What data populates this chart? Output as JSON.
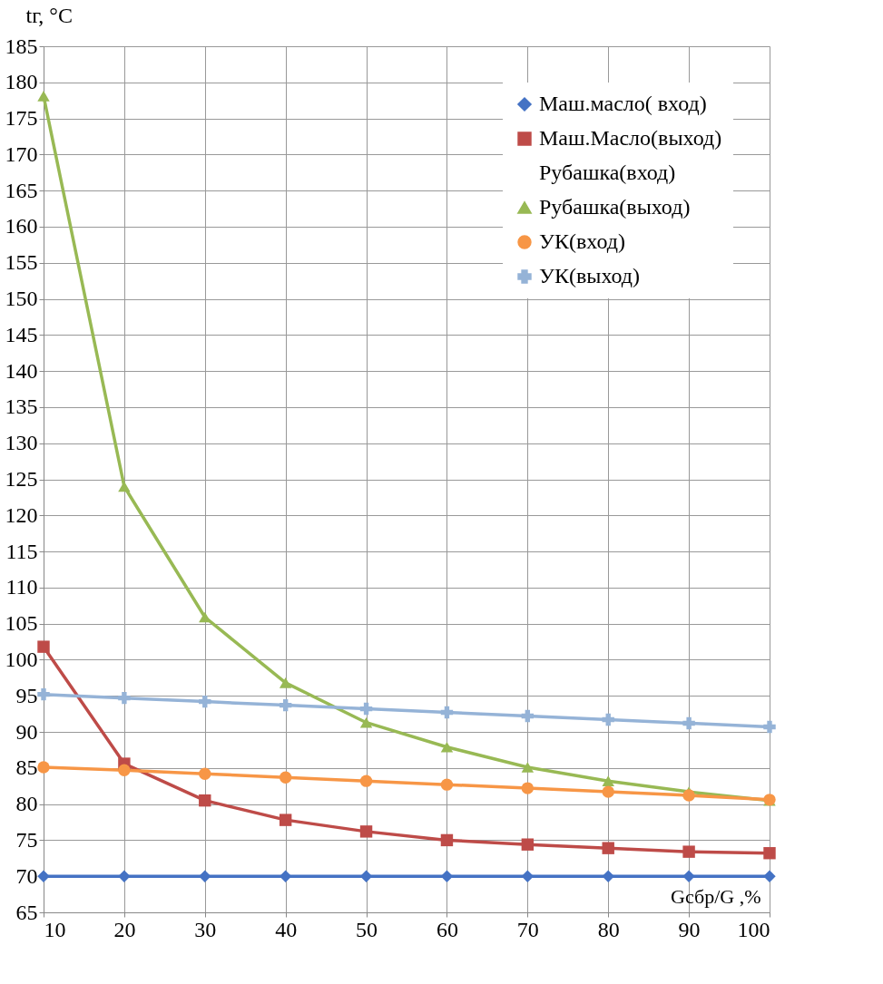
{
  "chart_data": {
    "type": "line",
    "xlabel": "Gсбр/G ,%",
    "ylabel": "tг, °C",
    "x": [
      10,
      20,
      30,
      40,
      50,
      60,
      70,
      80,
      90,
      100
    ],
    "series": [
      {
        "name": "Маш.масло( вход)",
        "color": "#4472c4",
        "marker": "diamond",
        "values": [
          70,
          70,
          70,
          70,
          70,
          70,
          70,
          70,
          70,
          70
        ]
      },
      {
        "name": "Маш.Масло(выход)",
        "color": "#be4b48",
        "marker": "square",
        "values": [
          101.8,
          85.6,
          80.5,
          77.8,
          76.2,
          75.0,
          74.4,
          73.9,
          73.4,
          73.2
        ]
      },
      {
        "name": "Рубашка(вход)",
        "marker": "none",
        "values": [
          null,
          null,
          null,
          null,
          null,
          null,
          null,
          null,
          null,
          null
        ]
      },
      {
        "name": "Рубашка(выход)",
        "color": "#98b954",
        "marker": "triangle",
        "values": [
          178.1,
          124.0,
          105.9,
          96.8,
          91.3,
          87.9,
          85.1,
          83.2,
          81.7,
          80.5
        ]
      },
      {
        "name": "УК(вход)",
        "color": "#f79646",
        "marker": "circle",
        "values": [
          85.1,
          84.7,
          84.2,
          83.7,
          83.2,
          82.7,
          82.2,
          81.7,
          81.2,
          80.6
        ]
      },
      {
        "name": "УК(выход)",
        "color": "#95b3d7",
        "marker": "cross",
        "values": [
          95.2,
          94.7,
          94.2,
          93.7,
          93.2,
          92.7,
          92.2,
          91.7,
          91.2,
          90.7
        ]
      }
    ],
    "xlim": [
      10,
      100
    ],
    "xticks": [
      10,
      20,
      30,
      40,
      50,
      60,
      70,
      80,
      90,
      100
    ],
    "ylim": [
      65,
      185
    ],
    "yticks": [
      65,
      70,
      75,
      80,
      85,
      90,
      95,
      100,
      105,
      110,
      115,
      120,
      125,
      130,
      135,
      140,
      145,
      150,
      155,
      160,
      165,
      170,
      175,
      180,
      185
    ],
    "grid": true,
    "legend": "top right",
    "line_style": "solid"
  }
}
